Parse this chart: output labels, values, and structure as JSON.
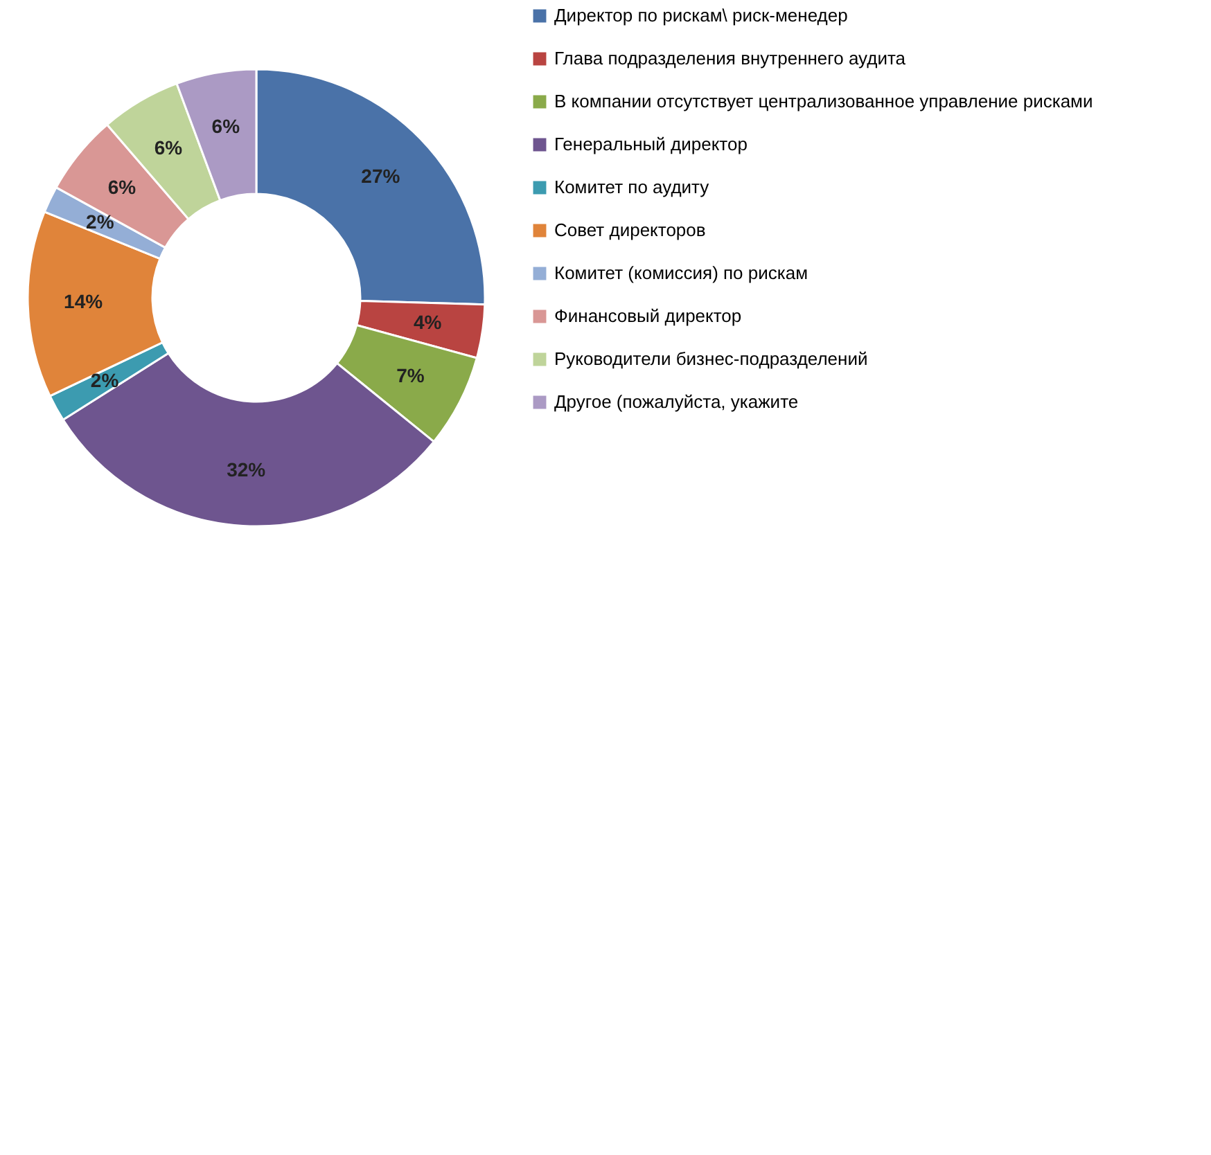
{
  "chart_data": {
    "type": "donut",
    "categories": [
      "Директор по рискам\\ риск-менедер",
      "Глава подразделения внутреннего аудита",
      "В компании отсутствует централизованное управление рисками",
      "Генеральный директор",
      "Комитет по аудиту",
      "Совет директоров",
      "Комитет (комиссия) по рискам",
      "Финансовый директор",
      "Руководители бизнес-подразделений",
      "Другое (пожалуйста, укажите"
    ],
    "values": [
      27,
      4,
      7,
      32,
      2,
      14,
      2,
      6,
      6,
      6
    ],
    "value_labels": [
      "27%",
      "4%",
      "7%",
      "32%",
      "2%",
      "14%",
      "2%",
      "6%",
      "6%",
      "6%"
    ],
    "colors": [
      "#4a72a8",
      "#b94441",
      "#8aaa4a",
      "#6e558f",
      "#3c9bb0",
      "#e0843a",
      "#94aed6",
      "#d99795",
      "#bfd49a",
      "#ab9ac4"
    ],
    "legend": "right"
  }
}
